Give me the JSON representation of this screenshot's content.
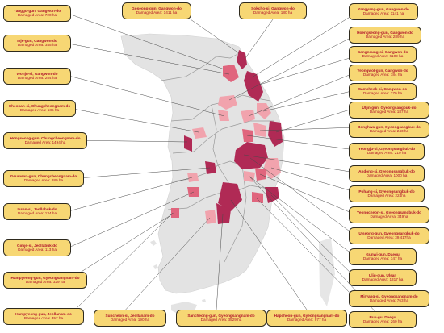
{
  "colors": {
    "label_bg": "#f7d774",
    "label_text": "#b1142b",
    "land": "#e3e3e3",
    "damage_high": "#b02a55",
    "damage_mid": "#e0657d",
    "damage_low": "#f1a3ad"
  },
  "labels": [
    {
      "name": "Yanggu-gun, Gangwon-do",
      "damage": "Damaged Area: 720 ha"
    },
    {
      "name": "Goseong-gun, Gangwon-do",
      "damage": "Damaged Area: 1411 ha"
    },
    {
      "name": "Sokcho-si, Gangwon-do",
      "damage": "Damaged Area: 180 ha"
    },
    {
      "name": "Yangyang-gun, Gangwon-do",
      "damage": "Damaged Area: 1141 ha"
    },
    {
      "name": "Inje-gun, Gangwon-do",
      "damage": "Damaged Area: 345 ha"
    },
    {
      "name": "Hoengseong-gun, Gangwon-do",
      "damage": "Damaged Area: 289 ha"
    },
    {
      "name": "Gangneung-si, Gangwon-do",
      "damage": "Damaged Area: 6109 ha"
    },
    {
      "name": "Wonju-si, Gangwon-do",
      "damage": "Damaged Area: 254 ha"
    },
    {
      "name": "Yeongwol-gun, Gangwon-do",
      "damage": "Damaged Area: 184 ha"
    },
    {
      "name": "Samcheok-si, Gangwon-do",
      "damage": "Damaged Area: 270 ha"
    },
    {
      "name": "Cheonan-si, Chungcheongnam-do",
      "damage": "Damaged Area: 136 ha"
    },
    {
      "name": "Uljin-gun, Gyeongsangbuk-do",
      "damage": "Damaged Area: 187 ha"
    },
    {
      "name": "Bonghwa-gun, Gyeongsangbuk-do",
      "damage": "Damaged Area: 243 ha"
    },
    {
      "name": "Hongseong-gun, Chungcheongnam-do",
      "damage": "Damaged Area: 1494 ha"
    },
    {
      "name": "Yeongju-si, Gyeongsangbuk-do",
      "damage": "Damaged Area: 210 ha"
    },
    {
      "name": "Geumsan-gun, Chungcheongnam-do",
      "damage": "Damaged Area: 889 ha"
    },
    {
      "name": "Andong-si, Gyeongsangbuk-do",
      "damage": "Damaged Area: 1000 ha"
    },
    {
      "name": "Pohang-si, Gyeongsangbuk-do",
      "damage": "Damaged Area: 224ha"
    },
    {
      "name": "Iksan-si, Jeollabuk-do",
      "damage": "Damaged Area: 134 ha"
    },
    {
      "name": "Yeongcheon-si, Gyeongsangbuk-do",
      "damage": "Damaged Area: 349ha"
    },
    {
      "name": "Uiseong-gun, Gyeongsangbuk-do",
      "damage": "Damaged Area: 39,417ha"
    },
    {
      "name": "Gimje-si, Jeollabuk-do",
      "damage": "Damaged Area: 113 ha"
    },
    {
      "name": "Gunwi-gun, Daegu",
      "damage": "Damaged Area: 347 ha"
    },
    {
      "name": "Hampyeong-gun, Gyeongsangnam-do",
      "damage": "Damaged Area: 329 ha"
    },
    {
      "name": "Ulju-gun, Ulsan",
      "damage": "Damaged Area: 1317 ha"
    },
    {
      "name": "Miryang-si, Gyeongsangnam-do",
      "damage": "Damaged Area: 763 ha"
    },
    {
      "name": "Hampyeong-gun, Jeollanam-do",
      "damage": "Damaged Area: 457 ha"
    },
    {
      "name": "Suncheon-si, Jeollanam-do",
      "damage": "Damaged Area: 190 ha"
    },
    {
      "name": "Sancheong-gun, Gyeongsangnam-do",
      "damage": "Damaged Area: 3529 ha"
    },
    {
      "name": "Hapcheon-gun, Gyeongsangnam-do",
      "damage": "Damaged Area: 977 ha"
    },
    {
      "name": "Buk-gu, Daegu",
      "damage": "Damaged Area: 260 ha"
    }
  ]
}
